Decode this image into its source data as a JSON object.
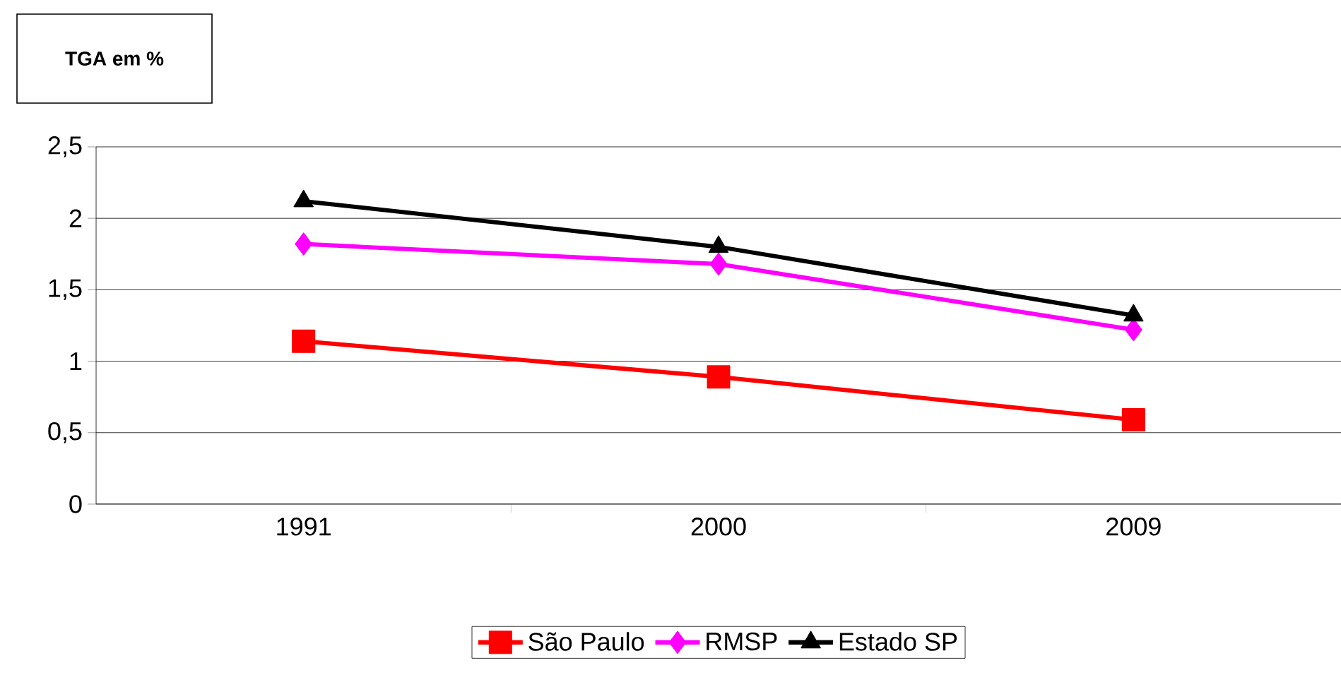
{
  "chart_data": {
    "type": "line",
    "title": "TGA em %",
    "categories": [
      "1991",
      "2000",
      "2009"
    ],
    "series": [
      {
        "name": "São Paulo",
        "color": "#ff0000",
        "marker": "square",
        "values": [
          1.14,
          0.89,
          0.59
        ]
      },
      {
        "name": "RMSP",
        "color": "#ff00ff",
        "marker": "diamond",
        "values": [
          1.82,
          1.68,
          1.22
        ]
      },
      {
        "name": "Estado SP",
        "color": "#000000",
        "marker": "triangle",
        "values": [
          2.12,
          1.8,
          1.32
        ]
      }
    ],
    "ylim": [
      0,
      2.5
    ],
    "yticks": [
      0,
      {
        "value": 0.5,
        "label": "0,5"
      },
      1,
      {
        "value": 1.5,
        "label": "1,5"
      },
      2,
      {
        "value": 2.5,
        "label": "2,5"
      }
    ],
    "grid": "y",
    "legend": "bottom"
  }
}
